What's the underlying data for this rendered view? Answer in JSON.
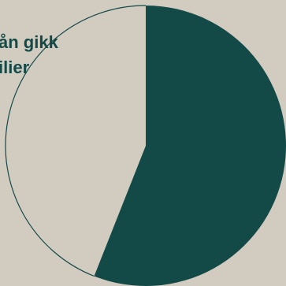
{
  "heading_fragment": "",
  "title_lines": [
    "ån gikk",
    "ilier"
  ],
  "colors": {
    "background": "#d2cbc0",
    "accent": "#134a48",
    "outline": "#134a48"
  },
  "chart_data": {
    "type": "pie",
    "title": "",
    "categories": [
      "",
      ""
    ],
    "values": [
      56,
      44
    ],
    "slice_colors": [
      "#134a48",
      "none"
    ],
    "slice_style": [
      "filled",
      "outline"
    ],
    "start_angle_deg": 0,
    "direction": "clockwise"
  }
}
